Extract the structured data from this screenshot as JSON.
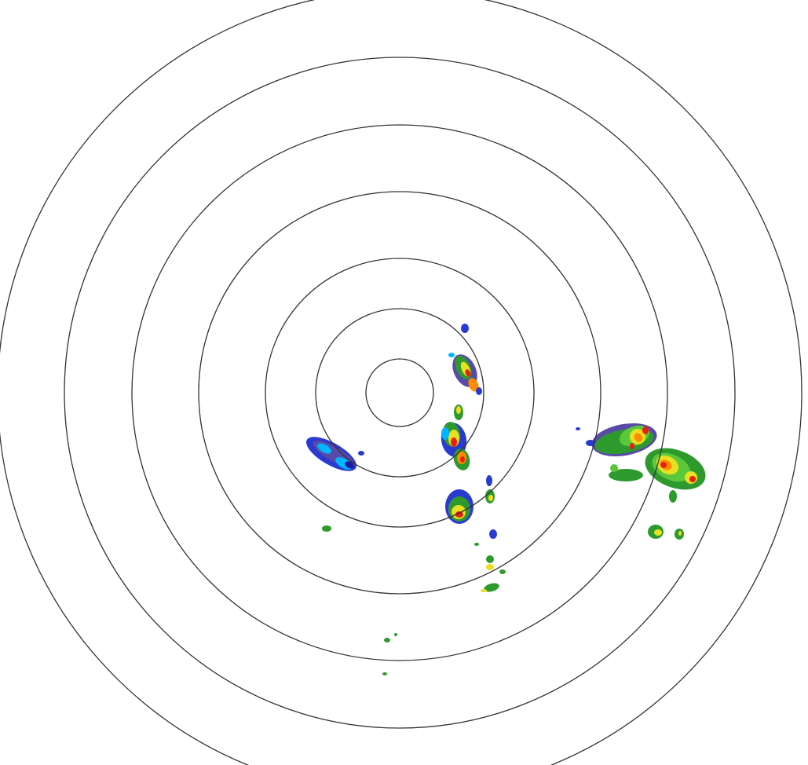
{
  "radar": {
    "ring_color": "#333333",
    "background": "#ffffff",
    "range_ring_count": 7,
    "reflectivity_colors": {
      "light_blue": "#00b4ff",
      "blue": "#2a3ad0",
      "dark_blue": "#1a1a9a",
      "purple": "#5a4aa8",
      "green": "#2e9a2e",
      "light_green": "#5ac83a",
      "yellow": "#e8e020",
      "orange": "#ff8c00",
      "red": "#e82010"
    }
  }
}
